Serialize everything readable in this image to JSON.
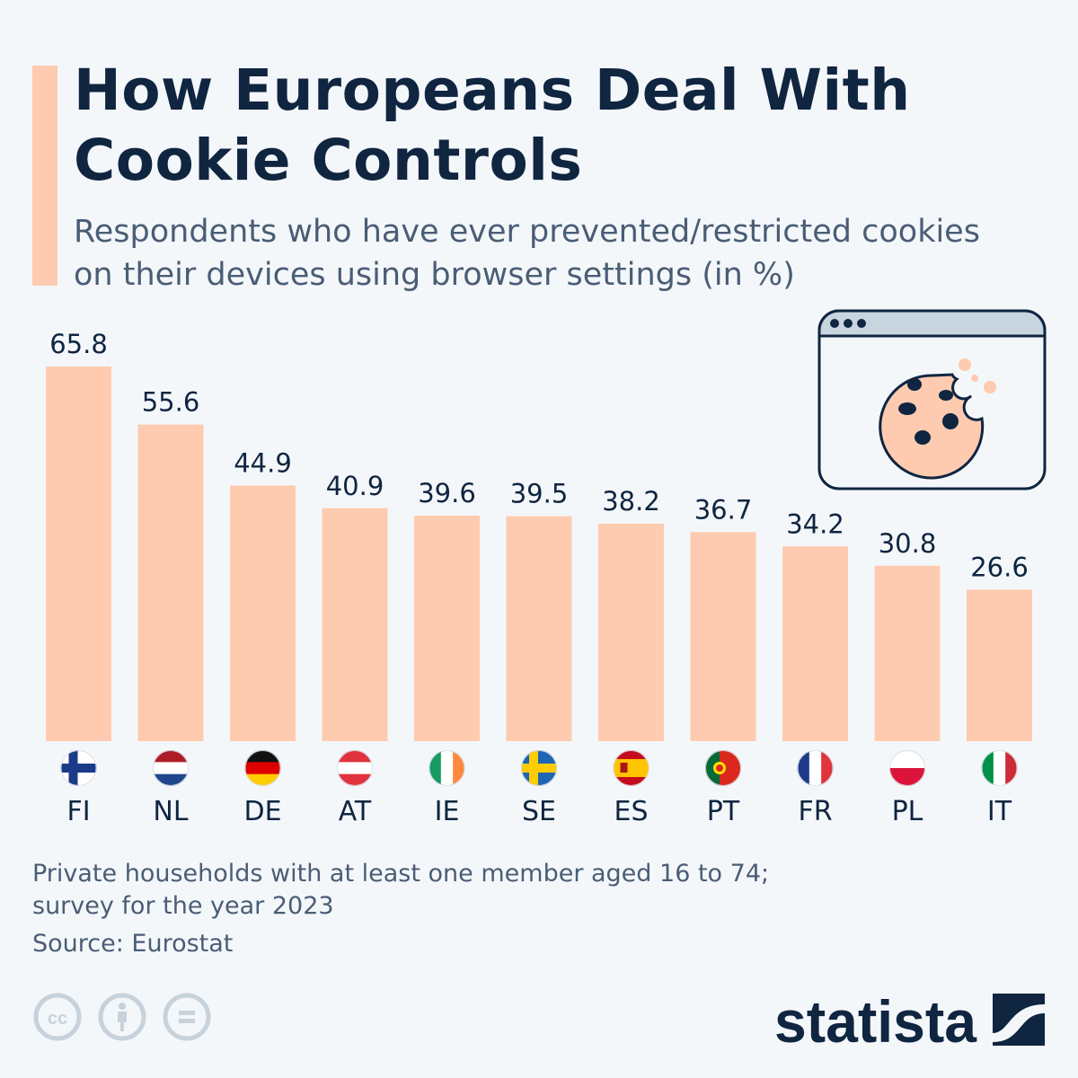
{
  "header": {
    "title_line1": "How Europeans Deal With",
    "title_line2": "Cookie Controls",
    "subtitle_line1": "Respondents who have ever prevented/restricted cookies",
    "subtitle_line2": "on their devices using browser settings (in %)"
  },
  "chart_data": {
    "type": "bar",
    "title": "How Europeans Deal With Cookie Controls",
    "subtitle": "Respondents who have ever prevented/restricted cookies on their devices using browser settings (in %)",
    "categories": [
      "FI",
      "NL",
      "DE",
      "AT",
      "IE",
      "SE",
      "ES",
      "PT",
      "FR",
      "PL",
      "IT"
    ],
    "values": [
      65.8,
      55.6,
      44.9,
      40.9,
      39.6,
      39.5,
      38.2,
      36.7,
      34.2,
      30.8,
      26.6
    ],
    "ylim": [
      0,
      65.8
    ],
    "grid": false,
    "bar_color": "#fecbb0",
    "flags": {
      "FI": {
        "type": "nordic",
        "colors": [
          "#ffffff",
          "#1a3a8a"
        ]
      },
      "NL": {
        "type": "h",
        "colors": [
          "#ae1c28",
          "#ffffff",
          "#21468b"
        ]
      },
      "DE": {
        "type": "h",
        "colors": [
          "#111111",
          "#dd0000",
          "#ffce00"
        ]
      },
      "AT": {
        "type": "h",
        "colors": [
          "#e1323d",
          "#ffffff",
          "#e1323d"
        ]
      },
      "IE": {
        "type": "v",
        "colors": [
          "#169b62",
          "#ffffff",
          "#ff883e"
        ]
      },
      "SE": {
        "type": "nordic",
        "colors": [
          "#1e66b4",
          "#fecc00"
        ]
      },
      "ES": {
        "type": "es",
        "colors": [
          "#c60b1e",
          "#ffc400"
        ]
      },
      "PT": {
        "type": "pt",
        "colors": [
          "#046a38",
          "#da291c"
        ]
      },
      "FR": {
        "type": "v",
        "colors": [
          "#1e3a8a",
          "#ffffff",
          "#e1323d"
        ]
      },
      "PL": {
        "type": "h",
        "colors": [
          "#ffffff",
          "#dc143c"
        ]
      },
      "IT": {
        "type": "v",
        "colors": [
          "#009246",
          "#ffffff",
          "#ce2b37"
        ]
      }
    }
  },
  "footer": {
    "note_line1": "Private households with at least one member aged 16 to 74;",
    "note_line2": "survey for the year 2023",
    "source": "Source: Eurostat",
    "brand": "statista"
  },
  "icons": [
    "browser-cookie-icon",
    "cc-icon",
    "attribution-icon",
    "no-derivatives-icon",
    "statista-logo"
  ]
}
